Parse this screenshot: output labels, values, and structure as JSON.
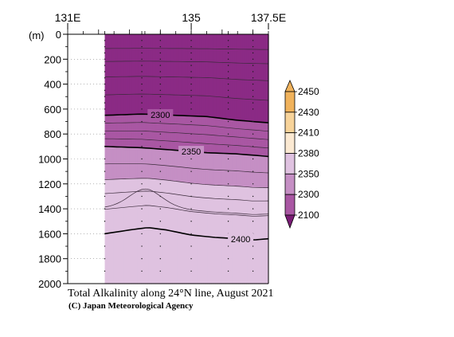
{
  "chart_data": {
    "type": "contour",
    "title": "Total Alkalinity along 24°N line, August 2021",
    "credit": "(C) Japan Meteorological Agency",
    "ylabel_unit": "(m)",
    "x_range": [
      131,
      137.5
    ],
    "y_range": [
      0,
      2000
    ],
    "y_inverted": true,
    "x_top_ticks": [
      {
        "value": 131,
        "label": "131E"
      },
      {
        "value": 135,
        "label": "135"
      },
      {
        "value": 137.5,
        "label": "137.5E"
      }
    ],
    "y_ticks": [
      0,
      200,
      400,
      600,
      800,
      1000,
      1200,
      1400,
      1600,
      1800,
      2000
    ],
    "data_x_range": [
      132.2,
      137.5
    ],
    "station_lons": [
      132.2,
      133.4,
      134.0,
      135.0,
      136.2,
      137.0
    ],
    "colorbar": {
      "levels": [
        2100,
        2300,
        2350,
        2380,
        2410,
        2430,
        2450
      ],
      "colors": [
        "#8b2a85",
        "#a957a3",
        "#c58fc4",
        "#dfc2e0",
        "#fbe9d2",
        "#f7d39a",
        "#f0b25c"
      ],
      "under_color": "#7a1c75",
      "over_color": "#f0b25c"
    },
    "labeled_contours": [
      {
        "level": 2300,
        "label": "2300",
        "depths": [
          [
            132.2,
            650
          ],
          [
            133.4,
            640
          ],
          [
            134.5,
            650
          ],
          [
            135.5,
            660
          ],
          [
            136.5,
            690
          ],
          [
            137.5,
            710
          ]
        ]
      },
      {
        "level": 2350,
        "label": "2350",
        "depths": [
          [
            132.2,
            900
          ],
          [
            133.4,
            910
          ],
          [
            134.5,
            930
          ],
          [
            135.5,
            950
          ],
          [
            136.5,
            960
          ],
          [
            137.5,
            980
          ]
        ]
      },
      {
        "level": 2400,
        "label": "2400",
        "depths": [
          [
            132.2,
            1600
          ],
          [
            133.0,
            1570
          ],
          [
            133.6,
            1550
          ],
          [
            134.2,
            1570
          ],
          [
            135.0,
            1610
          ],
          [
            135.8,
            1630
          ],
          [
            136.5,
            1640
          ],
          [
            137.0,
            1650
          ],
          [
            137.5,
            1640
          ]
        ]
      }
    ]
  }
}
